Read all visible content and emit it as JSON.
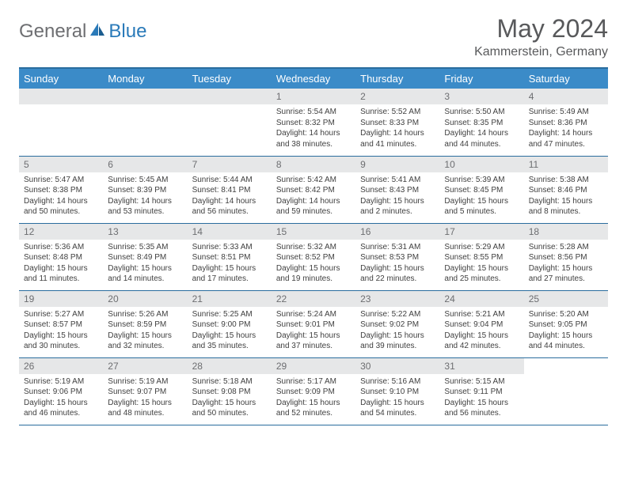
{
  "logo": {
    "general": "General",
    "blue": "Blue"
  },
  "title": "May 2024",
  "location": "Kammerstein, Germany",
  "header_bg": "#3b8bc8",
  "border_color": "#2a6d9e",
  "daynum_bg": "#e6e7e8",
  "text_color": "#404040",
  "days_of_week": [
    "Sunday",
    "Monday",
    "Tuesday",
    "Wednesday",
    "Thursday",
    "Friday",
    "Saturday"
  ],
  "weeks": [
    [
      null,
      null,
      null,
      {
        "n": "1",
        "sr": "5:54 AM",
        "ss": "8:32 PM",
        "dl": "14 hours and 38 minutes."
      },
      {
        "n": "2",
        "sr": "5:52 AM",
        "ss": "8:33 PM",
        "dl": "14 hours and 41 minutes."
      },
      {
        "n": "3",
        "sr": "5:50 AM",
        "ss": "8:35 PM",
        "dl": "14 hours and 44 minutes."
      },
      {
        "n": "4",
        "sr": "5:49 AM",
        "ss": "8:36 PM",
        "dl": "14 hours and 47 minutes."
      }
    ],
    [
      {
        "n": "5",
        "sr": "5:47 AM",
        "ss": "8:38 PM",
        "dl": "14 hours and 50 minutes."
      },
      {
        "n": "6",
        "sr": "5:45 AM",
        "ss": "8:39 PM",
        "dl": "14 hours and 53 minutes."
      },
      {
        "n": "7",
        "sr": "5:44 AM",
        "ss": "8:41 PM",
        "dl": "14 hours and 56 minutes."
      },
      {
        "n": "8",
        "sr": "5:42 AM",
        "ss": "8:42 PM",
        "dl": "14 hours and 59 minutes."
      },
      {
        "n": "9",
        "sr": "5:41 AM",
        "ss": "8:43 PM",
        "dl": "15 hours and 2 minutes."
      },
      {
        "n": "10",
        "sr": "5:39 AM",
        "ss": "8:45 PM",
        "dl": "15 hours and 5 minutes."
      },
      {
        "n": "11",
        "sr": "5:38 AM",
        "ss": "8:46 PM",
        "dl": "15 hours and 8 minutes."
      }
    ],
    [
      {
        "n": "12",
        "sr": "5:36 AM",
        "ss": "8:48 PM",
        "dl": "15 hours and 11 minutes."
      },
      {
        "n": "13",
        "sr": "5:35 AM",
        "ss": "8:49 PM",
        "dl": "15 hours and 14 minutes."
      },
      {
        "n": "14",
        "sr": "5:33 AM",
        "ss": "8:51 PM",
        "dl": "15 hours and 17 minutes."
      },
      {
        "n": "15",
        "sr": "5:32 AM",
        "ss": "8:52 PM",
        "dl": "15 hours and 19 minutes."
      },
      {
        "n": "16",
        "sr": "5:31 AM",
        "ss": "8:53 PM",
        "dl": "15 hours and 22 minutes."
      },
      {
        "n": "17",
        "sr": "5:29 AM",
        "ss": "8:55 PM",
        "dl": "15 hours and 25 minutes."
      },
      {
        "n": "18",
        "sr": "5:28 AM",
        "ss": "8:56 PM",
        "dl": "15 hours and 27 minutes."
      }
    ],
    [
      {
        "n": "19",
        "sr": "5:27 AM",
        "ss": "8:57 PM",
        "dl": "15 hours and 30 minutes."
      },
      {
        "n": "20",
        "sr": "5:26 AM",
        "ss": "8:59 PM",
        "dl": "15 hours and 32 minutes."
      },
      {
        "n": "21",
        "sr": "5:25 AM",
        "ss": "9:00 PM",
        "dl": "15 hours and 35 minutes."
      },
      {
        "n": "22",
        "sr": "5:24 AM",
        "ss": "9:01 PM",
        "dl": "15 hours and 37 minutes."
      },
      {
        "n": "23",
        "sr": "5:22 AM",
        "ss": "9:02 PM",
        "dl": "15 hours and 39 minutes."
      },
      {
        "n": "24",
        "sr": "5:21 AM",
        "ss": "9:04 PM",
        "dl": "15 hours and 42 minutes."
      },
      {
        "n": "25",
        "sr": "5:20 AM",
        "ss": "9:05 PM",
        "dl": "15 hours and 44 minutes."
      }
    ],
    [
      {
        "n": "26",
        "sr": "5:19 AM",
        "ss": "9:06 PM",
        "dl": "15 hours and 46 minutes."
      },
      {
        "n": "27",
        "sr": "5:19 AM",
        "ss": "9:07 PM",
        "dl": "15 hours and 48 minutes."
      },
      {
        "n": "28",
        "sr": "5:18 AM",
        "ss": "9:08 PM",
        "dl": "15 hours and 50 minutes."
      },
      {
        "n": "29",
        "sr": "5:17 AM",
        "ss": "9:09 PM",
        "dl": "15 hours and 52 minutes."
      },
      {
        "n": "30",
        "sr": "5:16 AM",
        "ss": "9:10 PM",
        "dl": "15 hours and 54 minutes."
      },
      {
        "n": "31",
        "sr": "5:15 AM",
        "ss": "9:11 PM",
        "dl": "15 hours and 56 minutes."
      },
      null
    ]
  ]
}
